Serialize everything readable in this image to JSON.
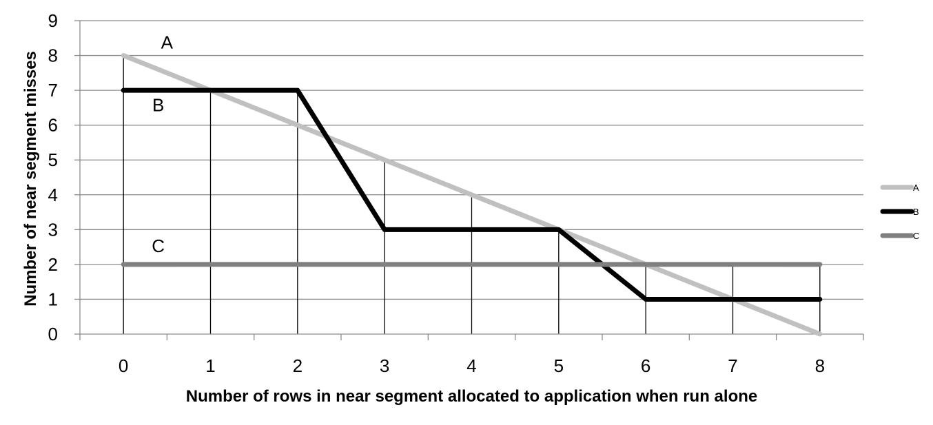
{
  "chart_data": {
    "type": "line",
    "title": "",
    "xlabel": "Number of rows in near segment allocated to application when run alone",
    "ylabel": "Number of near segment misses",
    "x": [
      0,
      1,
      2,
      3,
      4,
      5,
      6,
      7,
      8
    ],
    "x_tick_labels": [
      "0",
      "1",
      "2",
      "3",
      "4",
      "5",
      "6",
      "7",
      "8"
    ],
    "xlim": [
      -0.5,
      8.5
    ],
    "ylim": [
      0,
      9
    ],
    "y_tick_labels": [
      "0",
      "1",
      "2",
      "3",
      "4",
      "5",
      "6",
      "7",
      "8",
      "9"
    ],
    "grid": "horizontal",
    "legend_position": "right",
    "series": [
      {
        "name": "A",
        "color": "#c0c0c0",
        "x": [
          0,
          8
        ],
        "values": [
          8,
          0
        ]
      },
      {
        "name": "B",
        "color": "#000000",
        "x": [
          0,
          2,
          3,
          5,
          6,
          8
        ],
        "values": [
          7,
          7,
          3,
          3,
          1,
          1
        ]
      },
      {
        "name": "C",
        "color": "#808080",
        "x": [
          0,
          8
        ],
        "values": [
          2,
          2
        ]
      }
    ],
    "annotations": [
      {
        "text": "A",
        "x": 0.5,
        "y": 8.2
      },
      {
        "text": "B",
        "x": 0.4,
        "y": 6.4
      },
      {
        "text": "C",
        "x": 0.4,
        "y": 2.35
      }
    ],
    "drop_lines": [
      {
        "x": 0,
        "y": 8
      },
      {
        "x": 1,
        "y": 7
      },
      {
        "x": 2,
        "y": 7
      },
      {
        "x": 3,
        "y": 5
      },
      {
        "x": 4,
        "y": 4
      },
      {
        "x": 5,
        "y": 3
      },
      {
        "x": 6,
        "y": 2
      },
      {
        "x": 7,
        "y": 2
      },
      {
        "x": 8,
        "y": 2
      }
    ]
  }
}
